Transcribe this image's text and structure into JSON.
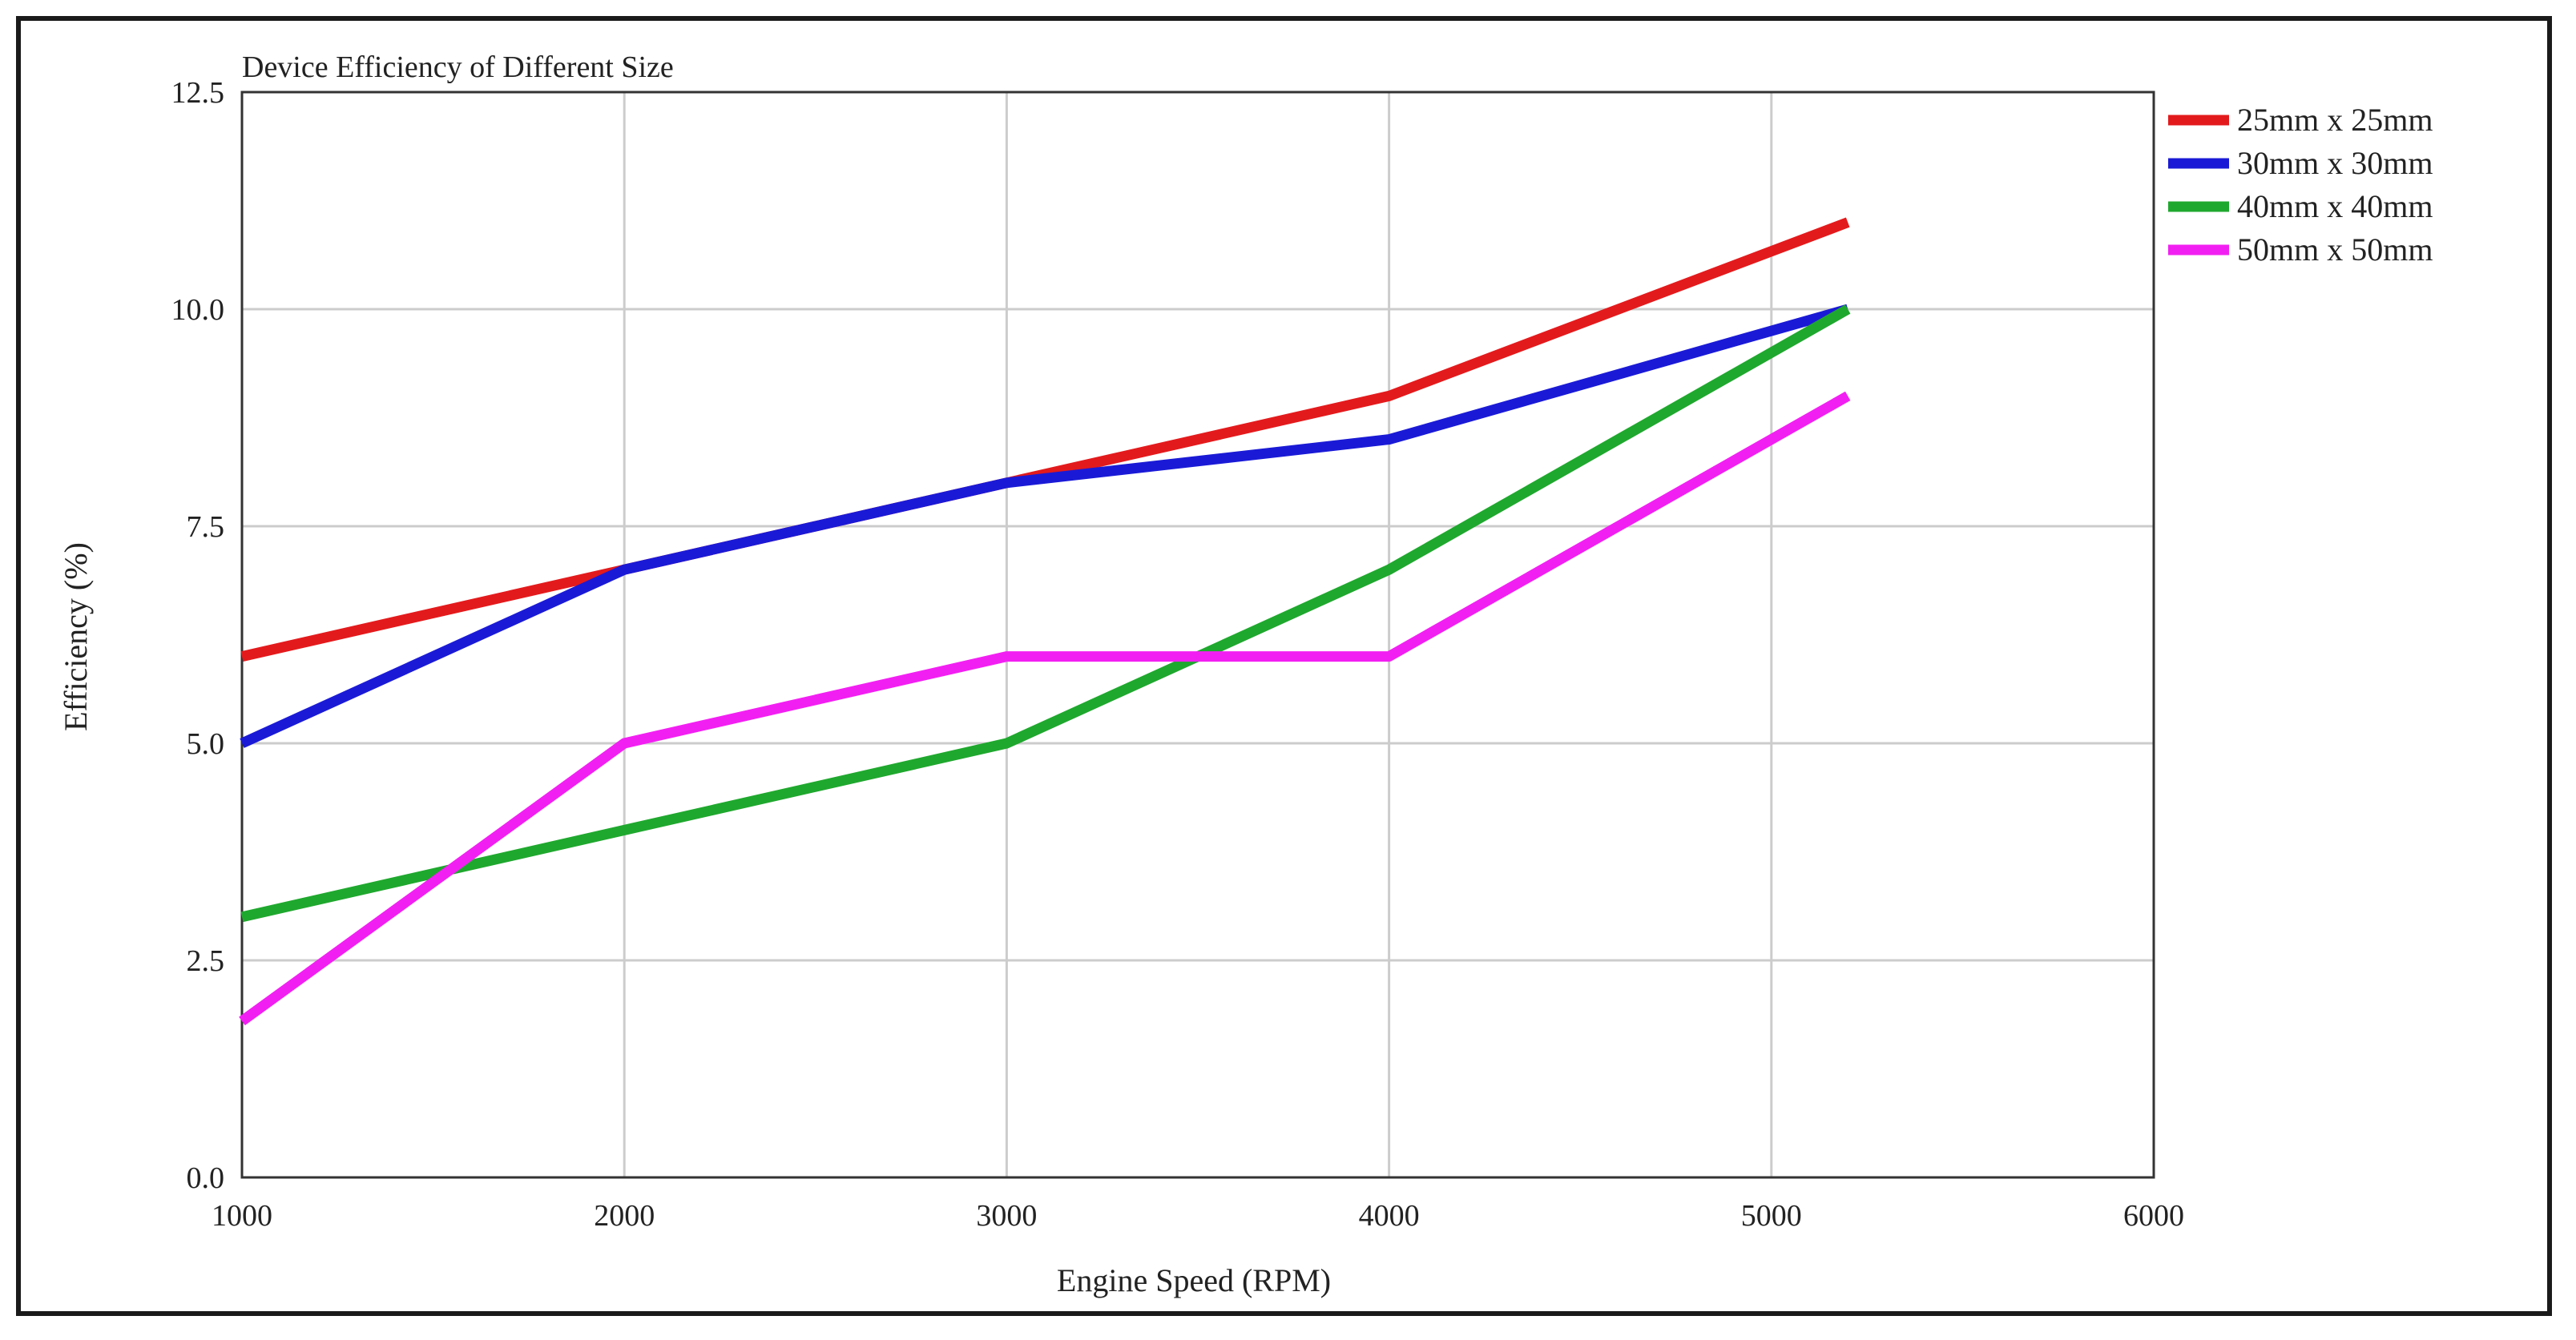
{
  "chart_data": {
    "type": "line",
    "title": "Device Efficiency of Different Size",
    "xlabel": "Engine Speed (RPM)",
    "ylabel": "Efficiency (%)",
    "xlim": [
      1000,
      6000
    ],
    "ylim": [
      0,
      12.5
    ],
    "xticks": [
      "1000",
      "2000",
      "3000",
      "4000",
      "5000",
      "6000"
    ],
    "yticks": [
      "0.0",
      "2.5",
      "5.0",
      "7.5",
      "10.0",
      "12.5"
    ],
    "grid": true,
    "legend_position": "right",
    "series": [
      {
        "name": "25mm x 25mm",
        "color": "#e31a1c",
        "x": [
          1000,
          2000,
          3000,
          4000,
          5200
        ],
        "y": [
          6.0,
          7.0,
          8.0,
          9.0,
          11.0
        ]
      },
      {
        "name": "30mm x 30mm",
        "color": "#1a1ad6",
        "x": [
          1000,
          2000,
          3000,
          4000,
          5200
        ],
        "y": [
          5.0,
          7.0,
          8.0,
          8.5,
          10.0
        ]
      },
      {
        "name": "40mm x 40mm",
        "color": "#1fa82e",
        "x": [
          1000,
          2000,
          3000,
          4000,
          5200
        ],
        "y": [
          3.0,
          4.0,
          5.0,
          7.0,
          10.0
        ]
      },
      {
        "name": "50mm x 50mm",
        "color": "#f21ff2",
        "x": [
          1000,
          2000,
          3000,
          4000,
          5200
        ],
        "y": [
          1.8,
          5.0,
          6.0,
          6.0,
          9.0
        ]
      }
    ]
  }
}
